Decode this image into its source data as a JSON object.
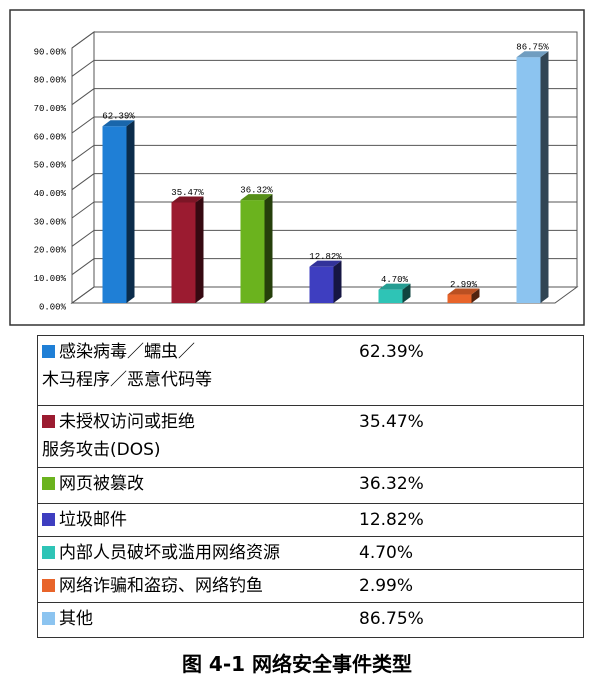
{
  "chart_data": {
    "type": "bar",
    "categories": [
      "感染病毒／蠕虫／\n木马程序／恶意代码等",
      "未授权访问或拒绝\n服务攻击(DOS)",
      "网页被篡改",
      "垃圾邮件",
      "内部人员破坏或滥用网络资源",
      "网络诈骗和盗窃、网络钓鱼",
      "其他"
    ],
    "values": [
      62.39,
      35.47,
      36.32,
      12.82,
      4.7,
      2.99,
      86.75
    ],
    "value_labels": [
      "62.39%",
      "35.47%",
      "36.32%",
      "12.82%",
      "4.70%",
      "2.99%",
      "86.75%"
    ],
    "colors": [
      "#1f7fd6",
      "#9b1b30",
      "#6bb31e",
      "#3e3ec0",
      "#2ec4b6",
      "#e8642a",
      "#8cc4f0"
    ],
    "ylim": [
      0,
      90
    ],
    "yticks": [
      {
        "value": 0,
        "label": "0.00%"
      },
      {
        "value": 10,
        "label": "10.00%"
      },
      {
        "value": 20,
        "label": "20.00%"
      },
      {
        "value": 30,
        "label": "30.00%"
      },
      {
        "value": 40,
        "label": "40.00%"
      },
      {
        "value": 50,
        "label": "50.00%"
      },
      {
        "value": 60,
        "label": "60.00%"
      },
      {
        "value": 70,
        "label": "70.00%"
      },
      {
        "value": 80,
        "label": "80.00%"
      },
      {
        "value": 90,
        "label": "90.00%"
      }
    ],
    "grid": true,
    "caption": "图 4-1 网络安全事件类型"
  }
}
